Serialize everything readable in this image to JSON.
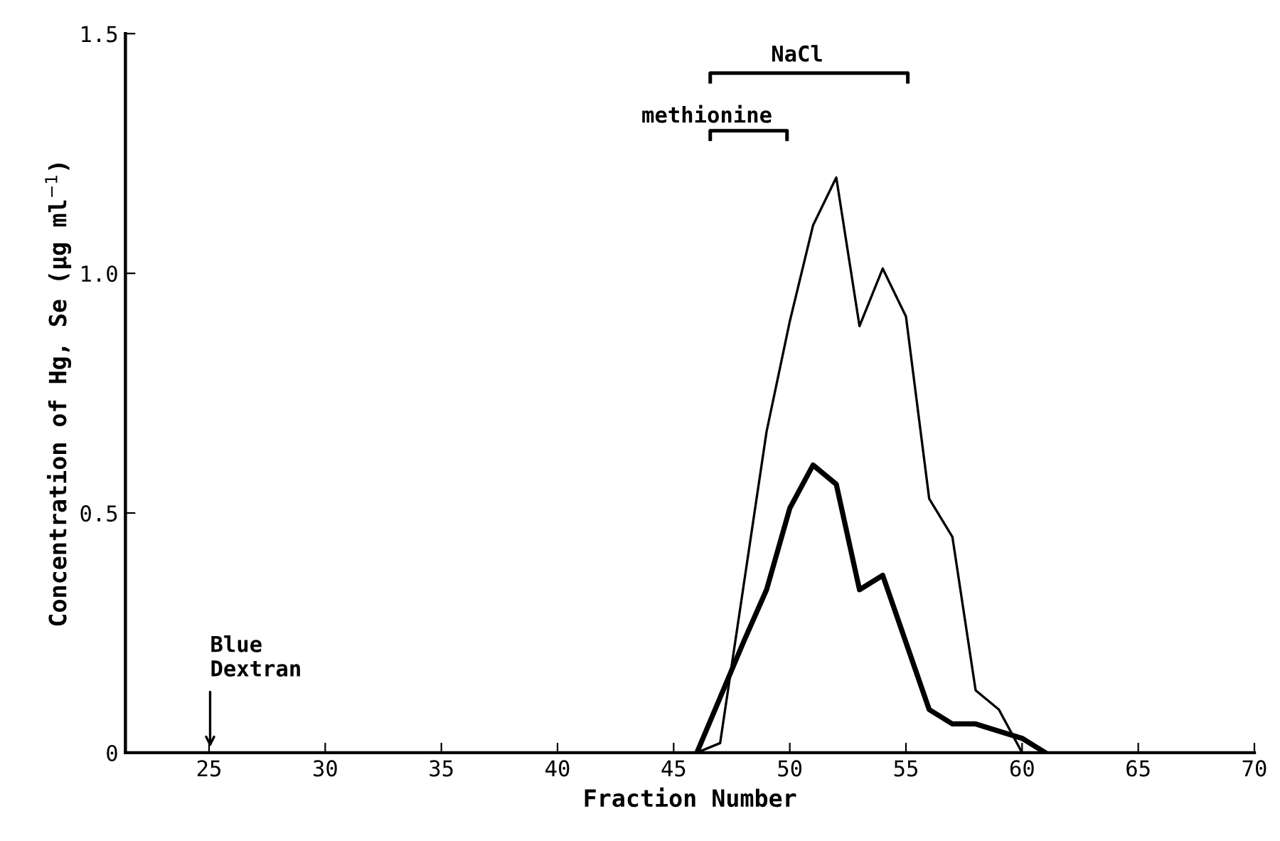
{
  "chart_data": {
    "type": "line",
    "xlabel": "Fraction Number",
    "ylabel": "Concentration of Hg, Se (µg ml$^{−1}$)",
    "series": [
      {
        "color": "#000000",
        "x": [
          46,
          47,
          49,
          50,
          51,
          52,
          53,
          54,
          55,
          56,
          57,
          58,
          59,
          60
        ],
        "values": [
          0,
          0.02,
          0.67,
          0.9,
          1.1,
          1.2,
          0.89,
          1.01,
          0.91,
          0.53,
          0.45,
          0.13,
          0.09,
          0
        ]
      },
      {
        "color": "#000000",
        "x": [
          46,
          48,
          49,
          50,
          51,
          52,
          53,
          54,
          56,
          57,
          58,
          60,
          61
        ],
        "values": [
          0,
          0.23,
          0.34,
          0.51,
          0.6,
          0.56,
          0.34,
          0.37,
          0.09,
          0.06,
          0.06,
          0.03,
          0
        ]
      }
    ],
    "xlim": [
      21.4,
      70
    ],
    "ylim": [
      0,
      1.5
    ],
    "xticks": [
      25,
      30,
      35,
      40,
      45,
      50,
      55,
      60,
      65,
      70
    ],
    "yticks": [
      0,
      0.5,
      {
        "value": 1,
        "label": "1.0"
      },
      1.5
    ],
    "annotations": [
      "NaCl",
      "methionine",
      "Blue\nDextran"
    ],
    "grid": false,
    "legend": false
  }
}
